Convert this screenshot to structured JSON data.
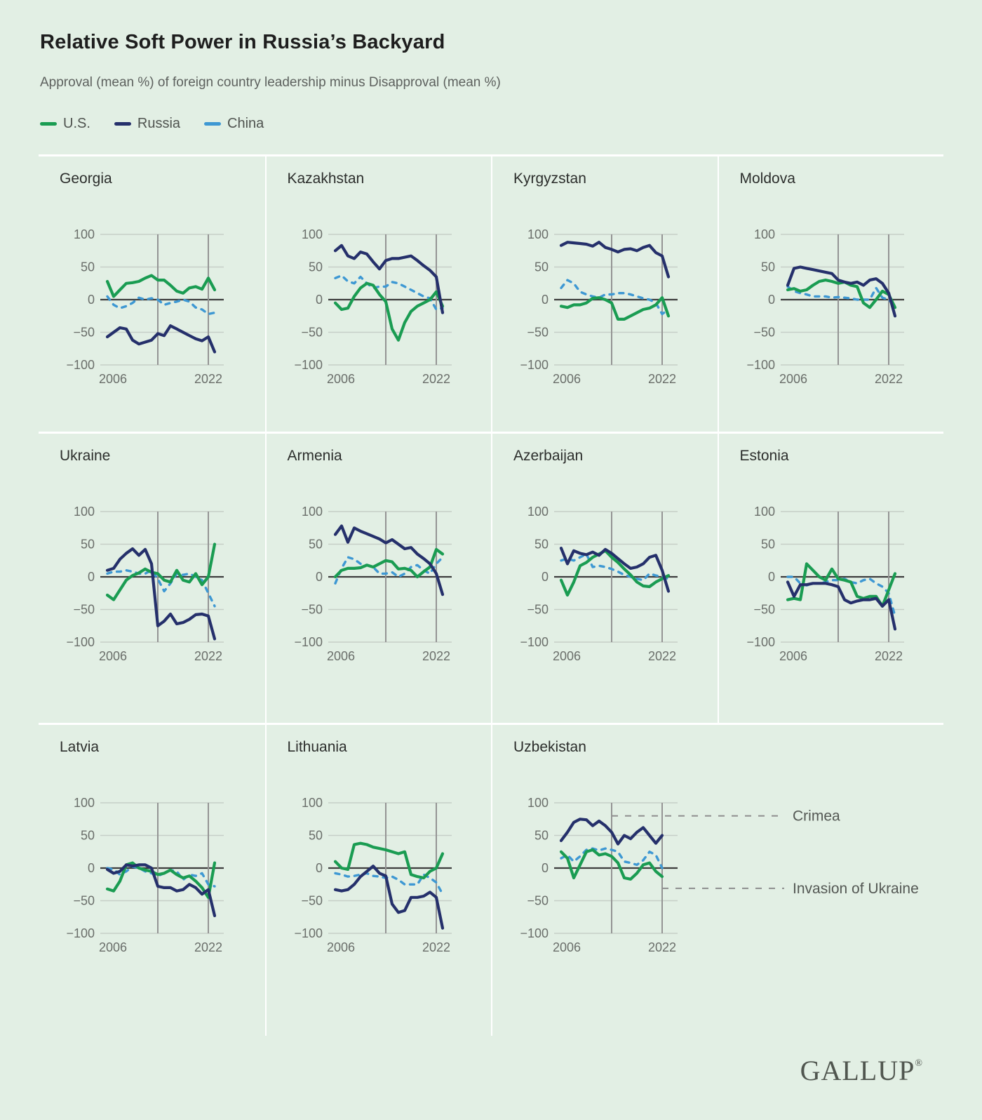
{
  "title": "Relative Soft Power in Russia’s Backyard",
  "subtitle": "Approval (mean %) of foreign country leadership minus Disapproval (mean %)",
  "legend": [
    {
      "label": "U.S.",
      "color": "#1a9c52",
      "dashed": false
    },
    {
      "label": "Russia",
      "color": "#25306b",
      "dashed": false
    },
    {
      "label": "China",
      "color": "#3e98d3",
      "dashed": true
    }
  ],
  "colors": {
    "background": "#e2efe4",
    "gridline": "#c6cfc7",
    "zero_line": "#3d3d3d",
    "event_line": "#949494",
    "annotation_dash": "#8e8e8e",
    "tick_label": "#6a6e6a",
    "divider": "#ffffff"
  },
  "footer": {
    "logo": "GALLUP",
    "reg": "®"
  },
  "chart_data": {
    "type": "line",
    "x": [
      2006,
      2007,
      2008,
      2009,
      2010,
      2011,
      2012,
      2013,
      2014,
      2015,
      2016,
      2017,
      2018,
      2019,
      2020,
      2021,
      2022,
      2023
    ],
    "x_ticks": [
      2006,
      2022
    ],
    "y_ticks": [
      100,
      50,
      0,
      -50,
      -100
    ],
    "ylim": [
      -100,
      100
    ],
    "grid": true,
    "legend_position": "top-left",
    "event_lines": [
      {
        "year": 2014,
        "label": "Crimea"
      },
      {
        "year": 2022,
        "label": "Invasion of Ukraine"
      }
    ],
    "panels": [
      {
        "country": "Georgia",
        "series": [
          {
            "name": "U.S.",
            "values": [
              28,
              5,
              15,
              25,
              26,
              28,
              33,
              37,
              30,
              30,
              22,
              13,
              10,
              18,
              20,
              16,
              33,
              15
            ]
          },
          {
            "name": "Russia",
            "values": [
              -57,
              -50,
              -43,
              -45,
              -62,
              -68,
              -65,
              -62,
              -52,
              -55,
              -40,
              -45,
              -50,
              -55,
              -60,
              -63,
              -57,
              -80
            ]
          },
          {
            "name": "China",
            "values": [
              5,
              -8,
              -13,
              -10,
              -5,
              3,
              0,
              2,
              0,
              -8,
              -5,
              -3,
              0,
              -3,
              -12,
              -15,
              -22,
              -20
            ]
          }
        ]
      },
      {
        "country": "Kazakhstan",
        "series": [
          {
            "name": "U.S.",
            "values": [
              -5,
              -15,
              -13,
              5,
              18,
              25,
              22,
              8,
              -3,
              -45,
              -62,
              -35,
              -18,
              -10,
              -5,
              0,
              12,
              -10
            ]
          },
          {
            "name": "Russia",
            "values": [
              75,
              83,
              67,
              63,
              73,
              70,
              58,
              47,
              60,
              63,
              63,
              65,
              67,
              60,
              52,
              45,
              35,
              -20
            ]
          },
          {
            "name": "China",
            "values": [
              33,
              37,
              28,
              25,
              35,
              25,
              18,
              20,
              20,
              27,
              25,
              20,
              15,
              10,
              5,
              2,
              -15,
              -13
            ]
          }
        ]
      },
      {
        "country": "Kyrgyzstan",
        "series": [
          {
            "name": "U.S.",
            "values": [
              -10,
              -12,
              -8,
              -8,
              -5,
              2,
              3,
              0,
              -5,
              -30,
              -30,
              -25,
              -20,
              -15,
              -13,
              -8,
              3,
              -25
            ]
          },
          {
            "name": "Russia",
            "values": [
              83,
              88,
              87,
              86,
              85,
              82,
              88,
              80,
              77,
              73,
              77,
              78,
              75,
              80,
              83,
              72,
              67,
              35
            ]
          },
          {
            "name": "China",
            "values": [
              18,
              30,
              25,
              12,
              8,
              5,
              3,
              8,
              8,
              10,
              10,
              8,
              5,
              2,
              0,
              -5,
              -22,
              -15
            ]
          }
        ]
      },
      {
        "country": "Moldova",
        "series": [
          {
            "name": "U.S.",
            "values": [
              15,
              17,
              13,
              15,
              22,
              28,
              30,
              28,
              25,
              27,
              22,
              20,
              -5,
              -12,
              0,
              13,
              8,
              -12
            ]
          },
          {
            "name": "Russia",
            "values": [
              22,
              48,
              50,
              48,
              46,
              44,
              42,
              40,
              30,
              27,
              25,
              27,
              22,
              30,
              32,
              25,
              10,
              -25
            ]
          },
          {
            "name": "China",
            "values": [
              20,
              13,
              10,
              8,
              5,
              5,
              5,
              3,
              4,
              3,
              2,
              0,
              0,
              0,
              18,
              3,
              0,
              -10
            ]
          }
        ]
      },
      {
        "country": "Ukraine",
        "series": [
          {
            "name": "U.S.",
            "values": [
              -28,
              -35,
              -20,
              -5,
              2,
              6,
              12,
              7,
              5,
              -5,
              -8,
              10,
              -5,
              -8,
              5,
              -12,
              0,
              50
            ]
          },
          {
            "name": "Russia",
            "values": [
              10,
              13,
              27,
              36,
              43,
              33,
              42,
              20,
              -75,
              -68,
              -57,
              -72,
              -70,
              -65,
              -58,
              -57,
              -60,
              -95
            ]
          },
          {
            "name": "China",
            "values": [
              5,
              8,
              8,
              10,
              8,
              5,
              5,
              10,
              -3,
              -22,
              -10,
              5,
              3,
              5,
              0,
              -5,
              -25,
              -45
            ]
          }
        ]
      },
      {
        "country": "Armenia",
        "series": [
          {
            "name": "U.S.",
            "values": [
              0,
              10,
              13,
              13,
              14,
              18,
              15,
              20,
              25,
              23,
              12,
              13,
              10,
              0,
              8,
              15,
              42,
              35
            ]
          },
          {
            "name": "Russia",
            "values": [
              65,
              78,
              53,
              75,
              70,
              66,
              62,
              58,
              52,
              57,
              50,
              43,
              45,
              35,
              28,
              20,
              5,
              -27
            ]
          },
          {
            "name": "China",
            "values": [
              -10,
              13,
              30,
              27,
              20,
              18,
              15,
              5,
              5,
              7,
              0,
              5,
              15,
              18,
              10,
              5,
              20,
              30
            ]
          }
        ]
      },
      {
        "country": "Azerbaijan",
        "series": [
          {
            "name": "U.S.",
            "values": [
              -5,
              -28,
              -8,
              17,
              22,
              30,
              35,
              40,
              30,
              22,
              12,
              3,
              -8,
              -14,
              -15,
              -8,
              -3,
              2
            ]
          },
          {
            "name": "Russia",
            "values": [
              44,
              20,
              40,
              36,
              34,
              38,
              33,
              42,
              36,
              28,
              20,
              13,
              15,
              20,
              30,
              33,
              10,
              -22
            ]
          },
          {
            "name": "China",
            "values": [
              25,
              28,
              25,
              30,
              35,
              15,
              17,
              15,
              12,
              8,
              3,
              0,
              -3,
              -5,
              5,
              2,
              0,
              -3
            ]
          }
        ]
      },
      {
        "country": "Estonia",
        "series": [
          {
            "name": "U.S.",
            "values": [
              -35,
              -33,
              -35,
              20,
              10,
              0,
              -5,
              12,
              -3,
              -5,
              -8,
              -30,
              -33,
              -30,
              -30,
              -45,
              -20,
              5
            ]
          },
          {
            "name": "Russia",
            "values": [
              -8,
              -30,
              -12,
              -12,
              -10,
              -10,
              -10,
              -12,
              -15,
              -35,
              -40,
              -37,
              -35,
              -35,
              -33,
              -45,
              -35,
              -80
            ]
          },
          {
            "name": "China",
            "values": [
              0,
              0,
              -10,
              -13,
              -10,
              -10,
              -8,
              -5,
              -5,
              -3,
              -8,
              -10,
              -5,
              -3,
              -10,
              -15,
              -25,
              -60
            ]
          }
        ]
      },
      {
        "country": "Latvia",
        "series": [
          {
            "name": "U.S.",
            "values": [
              -32,
              -35,
              -20,
              5,
              8,
              0,
              -3,
              -5,
              -10,
              -8,
              -3,
              -10,
              -15,
              -12,
              -20,
              -30,
              -45,
              8
            ]
          },
          {
            "name": "Russia",
            "values": [
              -2,
              -8,
              -5,
              5,
              3,
              5,
              5,
              0,
              -28,
              -30,
              -30,
              -35,
              -33,
              -25,
              -30,
              -40,
              -33,
              -73
            ]
          },
          {
            "name": "China",
            "values": [
              0,
              -2,
              -10,
              -5,
              2,
              0,
              -5,
              -8,
              -12,
              -8,
              -3,
              -5,
              -18,
              -10,
              -12,
              -8,
              -25,
              -28
            ]
          }
        ]
      },
      {
        "country": "Lithuania",
        "series": [
          {
            "name": "U.S.",
            "values": [
              10,
              0,
              -2,
              36,
              38,
              36,
              32,
              30,
              28,
              25,
              22,
              25,
              -10,
              -13,
              -15,
              -5,
              0,
              22
            ]
          },
          {
            "name": "Russia",
            "values": [
              -33,
              -35,
              -33,
              -25,
              -13,
              -5,
              3,
              -8,
              -12,
              -55,
              -68,
              -65,
              -45,
              -45,
              -43,
              -37,
              -45,
              -92
            ]
          },
          {
            "name": "China",
            "values": [
              -8,
              -10,
              -13,
              -12,
              -10,
              -8,
              -12,
              -13,
              -15,
              -13,
              -18,
              -25,
              -25,
              -25,
              -10,
              -15,
              -22,
              -40
            ]
          }
        ]
      },
      {
        "country": "Uzbekistan",
        "span2": true,
        "annotations": [
          {
            "event": 0,
            "value": 80
          },
          {
            "event": 1,
            "value": -31
          }
        ],
        "series": [
          {
            "name": "U.S.",
            "values": [
              25,
              15,
              -15,
              5,
              25,
              28,
              20,
              22,
              18,
              8,
              -15,
              -17,
              -8,
              5,
              8,
              -5,
              -13,
              null
            ]
          },
          {
            "name": "Russia",
            "values": [
              42,
              55,
              70,
              75,
              74,
              65,
              72,
              65,
              55,
              37,
              50,
              45,
              55,
              62,
              50,
              38,
              50,
              null
            ]
          },
          {
            "name": "China",
            "values": [
              15,
              20,
              10,
              18,
              28,
              30,
              27,
              30,
              28,
              25,
              10,
              8,
              5,
              12,
              25,
              20,
              0,
              null
            ]
          }
        ]
      }
    ]
  }
}
